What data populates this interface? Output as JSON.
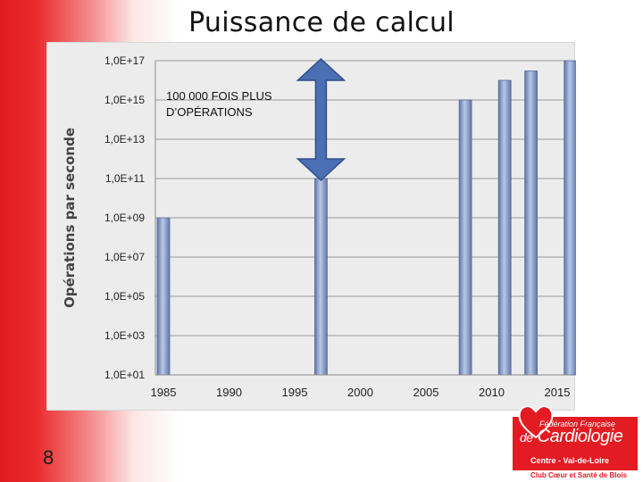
{
  "slide": {
    "title": "Puissance de calcul",
    "page_number": "8"
  },
  "logo": {
    "line1": "Fédération Française",
    "line2_prefix": "de",
    "line2_main": "Cardiologie",
    "line3": "Centre - Val-de-Loire",
    "line4": "Club Cœur et Santé de Blois",
    "colors": {
      "brand_red": "#e31b23"
    }
  },
  "chart_data": {
    "type": "bar",
    "ylabel": "Opérations par seconde",
    "xlabel": "",
    "y_scale": "log",
    "ylim": [
      10,
      1e+17
    ],
    "y_ticks": [
      10,
      1000,
      100000,
      10000000,
      1000000000,
      100000000000,
      10000000000000,
      1000000000000000,
      100000000000000000
    ],
    "y_tick_labels": [
      "1,0E+01",
      "1,0E+03",
      "1,0E+05",
      "1,0E+07",
      "1,0E+09",
      "1,0E+11",
      "1,0E+13",
      "1,0E+15",
      "1,0E+17"
    ],
    "xlim": [
      1985,
      2016
    ],
    "x_ticks": [
      1985,
      1990,
      1995,
      2000,
      2005,
      2010,
      2015
    ],
    "x_tick_labels": [
      "1985",
      "1990",
      "1995",
      "2000",
      "2005",
      "2010",
      "2015"
    ],
    "x": [
      1985,
      1997,
      2008,
      2011,
      2013,
      2016
    ],
    "values": [
      1000000000,
      100000000000,
      1000000000000000,
      10000000000000000,
      30000000000000000,
      100000000000000000
    ],
    "grid": "horizontal",
    "annotations": [
      {
        "text_line1": "100 000 FOIS PLUS",
        "text_line2": "D’OPÉRATIONS",
        "x": 1996,
        "y": 1000000000000000.0
      }
    ],
    "arrow": {
      "x": 1997,
      "from": 100000000000,
      "to": 100000000000000000
    },
    "colors": {
      "bar": "#7b8fbd",
      "arrow": "#4a6fb3",
      "panel": "#ececec",
      "grid": "#9a9a9a"
    }
  }
}
